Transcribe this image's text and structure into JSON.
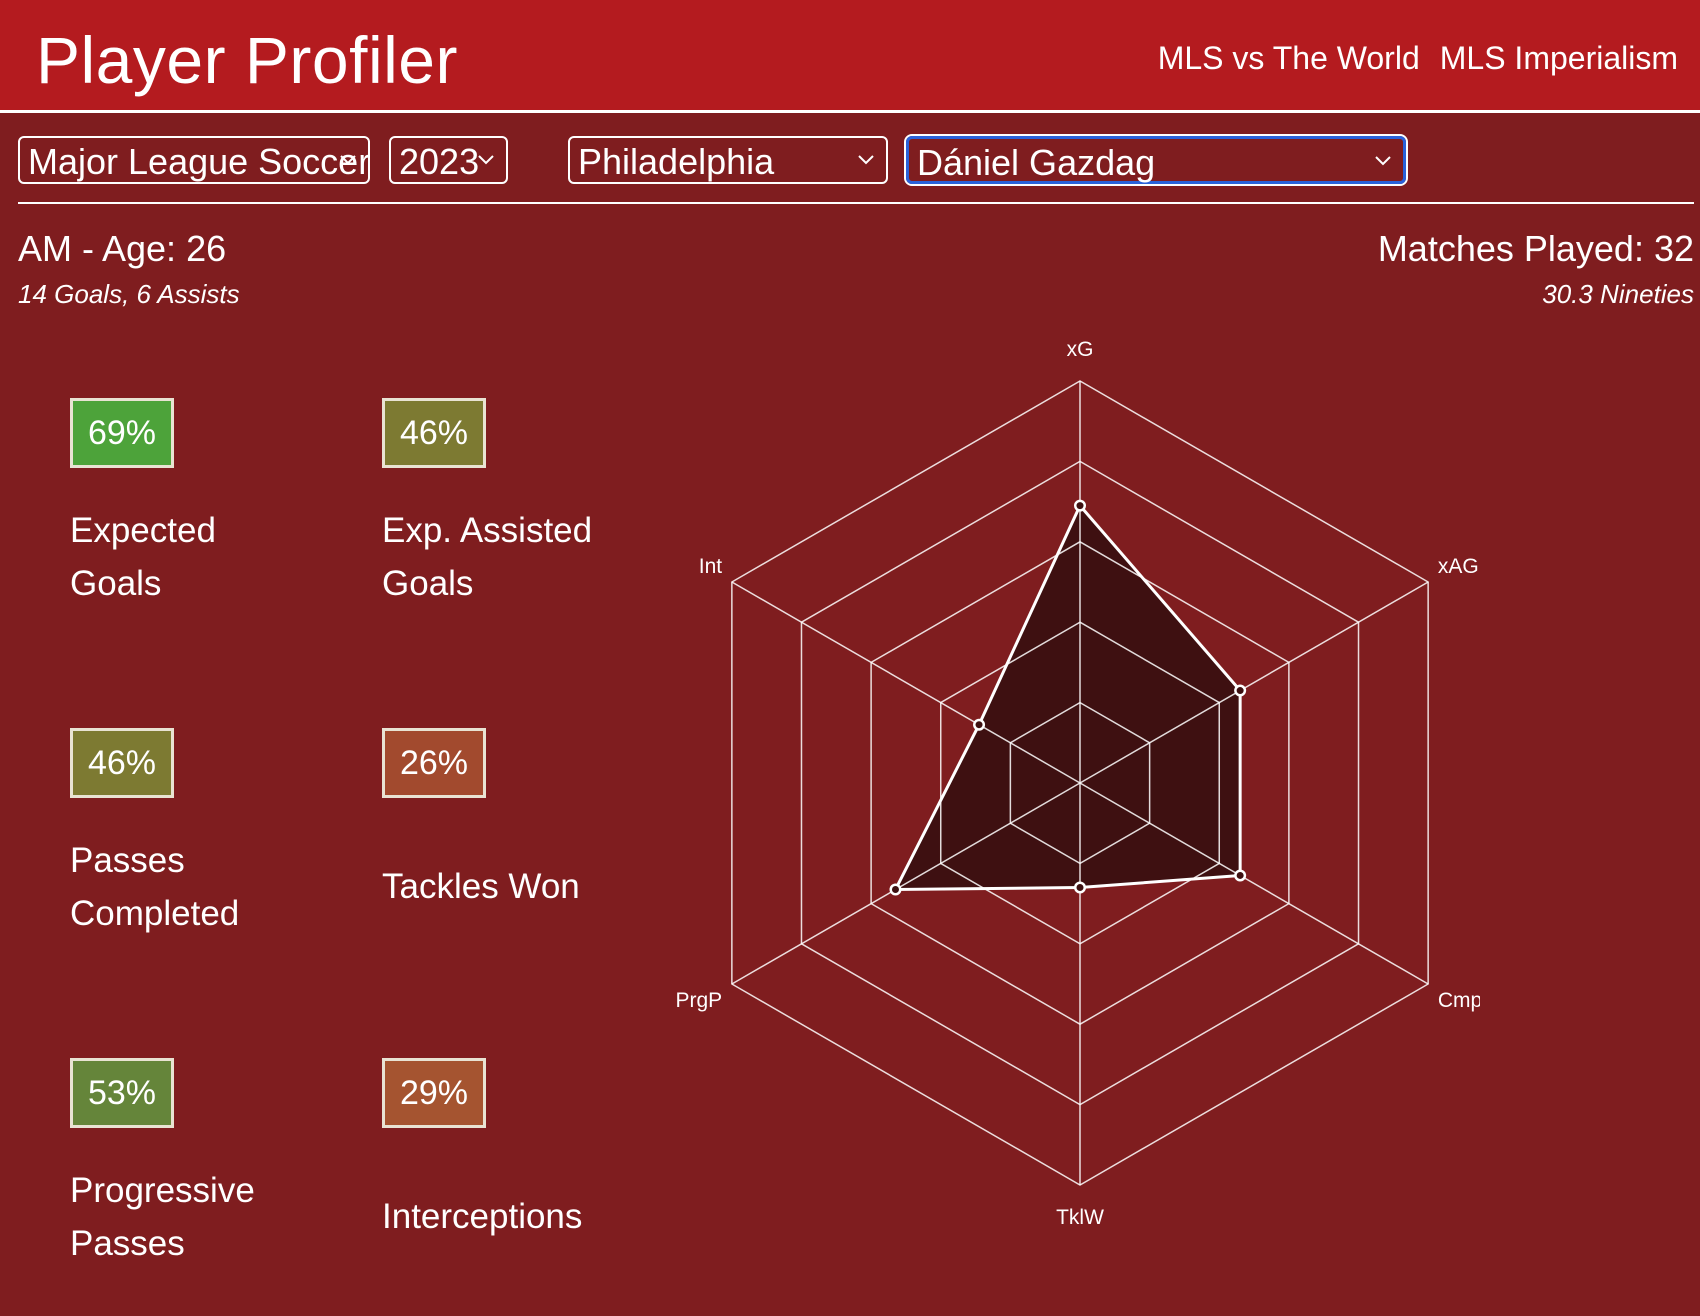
{
  "header": {
    "title": "Player Profiler",
    "nav": [
      "MLS vs The World",
      "MLS Imperialism"
    ]
  },
  "filters": {
    "league": "Major League Soccer",
    "season": "2023",
    "team": "Philadelphia",
    "player": "Dániel Gazdag"
  },
  "player": {
    "position_age": "AM - Age: 26",
    "goals_assists": "14 Goals, 6 Assists",
    "matches": "Matches Played: 32",
    "nineties": "30.3 Nineties"
  },
  "metrics": [
    {
      "value": "69%",
      "label": "Expected Goals",
      "color": "#4da33a"
    },
    {
      "value": "46%",
      "label": "Exp. Assisted Goals",
      "color": "#7d7a32"
    },
    {
      "value": "46%",
      "label": "Passes Completed",
      "color": "#7d7a32"
    },
    {
      "value": "26%",
      "label": "Tackles Won",
      "color": "#a24a2e"
    },
    {
      "value": "53%",
      "label": "Progressive Passes",
      "color": "#65853a"
    },
    {
      "value": "29%",
      "label": "Interceptions",
      "color": "#a55430"
    }
  ],
  "chart_data": {
    "type": "radar",
    "axes": [
      "xG",
      "xAG",
      "Cmp",
      "TklW",
      "PrgP",
      "Int"
    ],
    "values": [
      69,
      46,
      46,
      26,
      53,
      29
    ],
    "range": [
      0,
      100
    ],
    "rings": 5,
    "fill_color": "#3e1011",
    "line_color": "#ffffff"
  }
}
